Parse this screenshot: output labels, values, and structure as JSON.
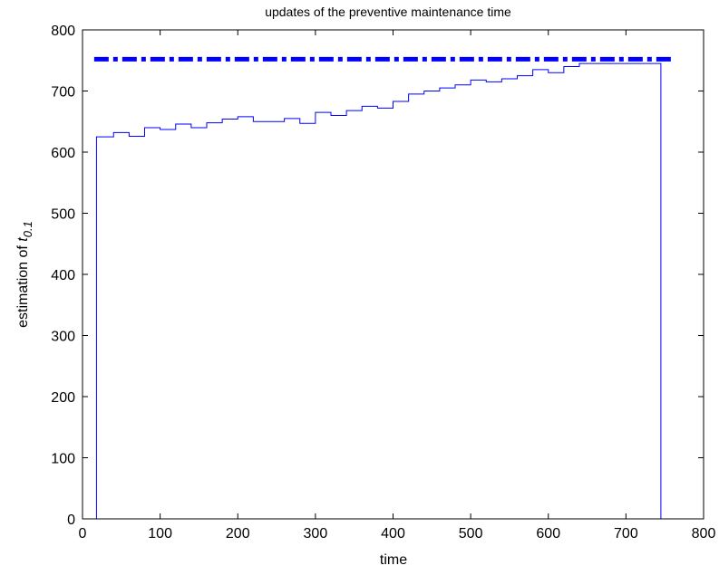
{
  "chart_data": {
    "type": "line",
    "title": "updates of the preventive maintenance time",
    "xlabel": "time",
    "ylabel": {
      "text": "estimation of ",
      "symbol": "t",
      "subscript": "0.1"
    },
    "xlim": [
      0,
      800
    ],
    "ylim": [
      0,
      800
    ],
    "x_ticks": [
      "0",
      "100",
      "200",
      "300",
      "400",
      "500",
      "600",
      "700",
      "800"
    ],
    "y_ticks": [
      "0",
      "100",
      "200",
      "300",
      "400",
      "500",
      "600",
      "700",
      "800"
    ],
    "grid": false,
    "series": [
      {
        "style": "step",
        "color": "#0000ff",
        "x": [
          0,
          18,
          18,
          40,
          60,
          80,
          100,
          120,
          140,
          160,
          180,
          200,
          220,
          240,
          260,
          280,
          300,
          320,
          340,
          360,
          380,
          400,
          420,
          440,
          460,
          480,
          500,
          520,
          540,
          560,
          580,
          600,
          620,
          640,
          660,
          680,
          700,
          720,
          745,
          745,
          760
        ],
        "y": [
          0,
          0,
          625,
          632,
          626,
          640,
          637,
          646,
          640,
          648,
          654,
          658,
          650,
          650,
          655,
          647,
          665,
          660,
          668,
          675,
          672,
          683,
          695,
          700,
          705,
          710,
          718,
          715,
          720,
          725,
          735,
          730,
          740,
          745,
          745,
          745,
          745,
          745,
          745,
          0,
          0
        ]
      },
      {
        "style": "dashdot",
        "color": "#0000ff",
        "x": [
          15,
          760
        ],
        "y": [
          752,
          752
        ]
      }
    ]
  }
}
